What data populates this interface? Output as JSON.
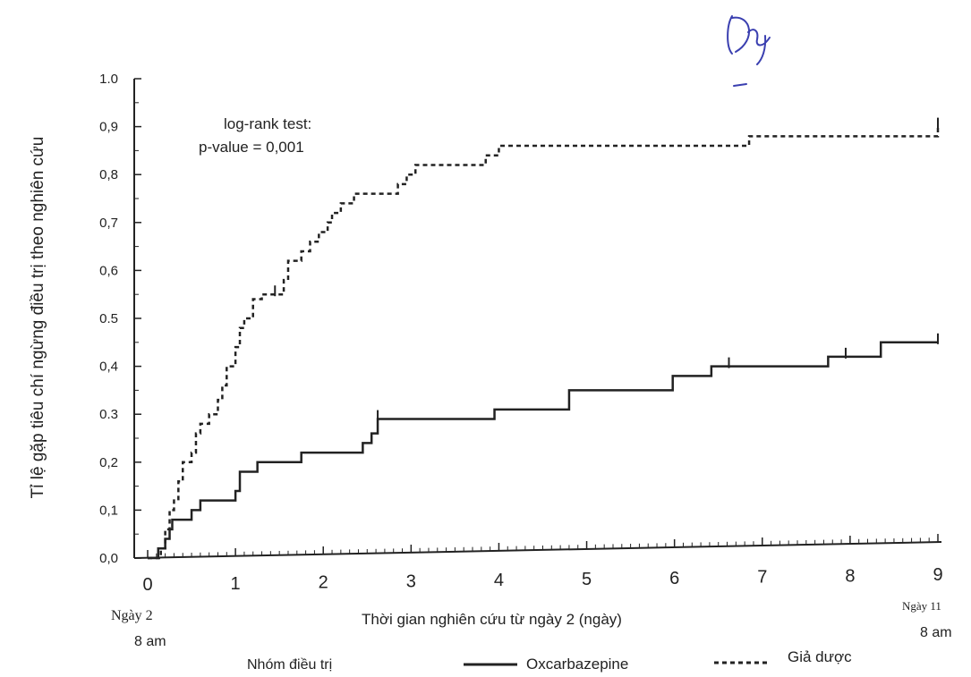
{
  "chart_data": {
    "type": "line",
    "subtype": "kaplan-meier step curve",
    "ylabel": "Tỉ lệ gặp tiêu chí ngừng điều trị theo nghiên cứu",
    "xlabel": "Thời gian nghiên cứu từ ngày 2 (ngày)",
    "x_start_label": [
      "Ngày 2",
      "8 am"
    ],
    "x_end_label": [
      "Ngày 11",
      "8 am"
    ],
    "annotation": [
      "log-rank test:",
      "p-value =  0,001"
    ],
    "legend_title": "Nhóm điều trị",
    "legend_placement": "bottom",
    "xlim": [
      0,
      9
    ],
    "ylim": [
      0,
      1
    ],
    "x_ticks": [
      "0",
      "1",
      "2",
      "3",
      "4",
      "5",
      "6",
      "7",
      "8",
      "9"
    ],
    "y_ticks": [
      "0,0",
      "0,1",
      "0,2",
      "0.3",
      "0,4",
      "0.5",
      "0,6",
      "0,7",
      "0,8",
      "0,9",
      "1.0"
    ],
    "grid": false,
    "series": [
      {
        "name": "Oxcarbazepine",
        "style": "solid",
        "color": "#222222",
        "points": [
          [
            0.0,
            0.0
          ],
          [
            0.12,
            0.02
          ],
          [
            0.2,
            0.04
          ],
          [
            0.25,
            0.06
          ],
          [
            0.28,
            0.08
          ],
          [
            0.5,
            0.1
          ],
          [
            0.6,
            0.12
          ],
          [
            1.0,
            0.14
          ],
          [
            1.05,
            0.18
          ],
          [
            1.25,
            0.2
          ],
          [
            1.75,
            0.22
          ],
          [
            2.45,
            0.24
          ],
          [
            2.55,
            0.26
          ],
          [
            2.62,
            0.29
          ],
          [
            3.95,
            0.31
          ],
          [
            4.8,
            0.35
          ],
          [
            5.98,
            0.38
          ],
          [
            6.42,
            0.4
          ],
          [
            7.75,
            0.42
          ],
          [
            8.35,
            0.45
          ],
          [
            9.0,
            0.45
          ]
        ],
        "censor_marks": [
          [
            2.62,
            0.29
          ],
          [
            6.62,
            0.4
          ],
          [
            7.95,
            0.42
          ],
          [
            9.0,
            0.45
          ]
        ]
      },
      {
        "name": "Giả dược",
        "style": "dashed",
        "color": "#222222",
        "points": [
          [
            0.0,
            0.0
          ],
          [
            0.15,
            0.02
          ],
          [
            0.2,
            0.06
          ],
          [
            0.25,
            0.1
          ],
          [
            0.3,
            0.12
          ],
          [
            0.35,
            0.16
          ],
          [
            0.4,
            0.2
          ],
          [
            0.5,
            0.22
          ],
          [
            0.55,
            0.26
          ],
          [
            0.6,
            0.28
          ],
          [
            0.7,
            0.3
          ],
          [
            0.8,
            0.33
          ],
          [
            0.85,
            0.36
          ],
          [
            0.9,
            0.4
          ],
          [
            1.0,
            0.44
          ],
          [
            1.05,
            0.48
          ],
          [
            1.1,
            0.5
          ],
          [
            1.2,
            0.54
          ],
          [
            1.3,
            0.55
          ],
          [
            1.55,
            0.58
          ],
          [
            1.6,
            0.62
          ],
          [
            1.75,
            0.64
          ],
          [
            1.85,
            0.66
          ],
          [
            1.95,
            0.68
          ],
          [
            2.05,
            0.7
          ],
          [
            2.1,
            0.72
          ],
          [
            2.2,
            0.74
          ],
          [
            2.35,
            0.76
          ],
          [
            2.85,
            0.78
          ],
          [
            2.95,
            0.8
          ],
          [
            3.05,
            0.82
          ],
          [
            3.85,
            0.84
          ],
          [
            4.0,
            0.86
          ],
          [
            6.85,
            0.88
          ],
          [
            9.0,
            0.9
          ]
        ],
        "censor_marks": [
          [
            1.45,
            0.55
          ],
          [
            9.0,
            0.9
          ]
        ]
      }
    ]
  },
  "handwriting_mark": "Dy"
}
